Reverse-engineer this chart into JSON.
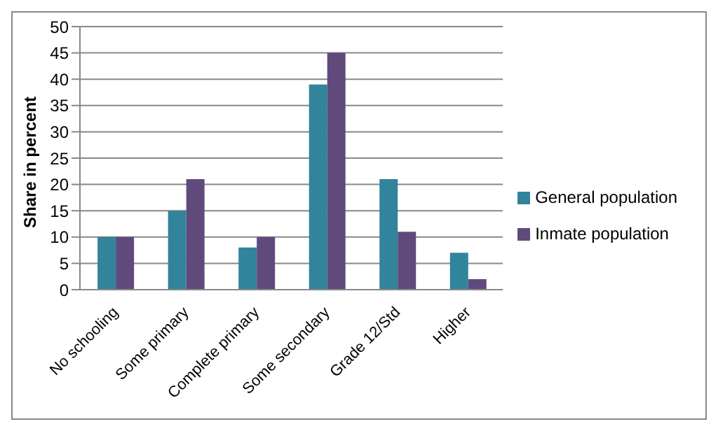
{
  "chart_data": {
    "type": "bar",
    "ylabel": "Share in percent",
    "categories": [
      "No schooling",
      "Some primary",
      "Complete primary",
      "Some secondary",
      "Grade 12/Std",
      "Higher"
    ],
    "series": [
      {
        "name": "General population",
        "color": "#31849b",
        "values": [
          10,
          15,
          8,
          39,
          21,
          7
        ]
      },
      {
        "name": "Inmate population",
        "color": "#604a7b",
        "values": [
          10,
          21,
          10,
          45,
          11,
          2
        ]
      }
    ],
    "ylim": [
      0,
      50
    ],
    "yticks": [
      0,
      5,
      10,
      15,
      20,
      25,
      30,
      35,
      40,
      45,
      50
    ],
    "grid": "y",
    "legend": "right"
  }
}
